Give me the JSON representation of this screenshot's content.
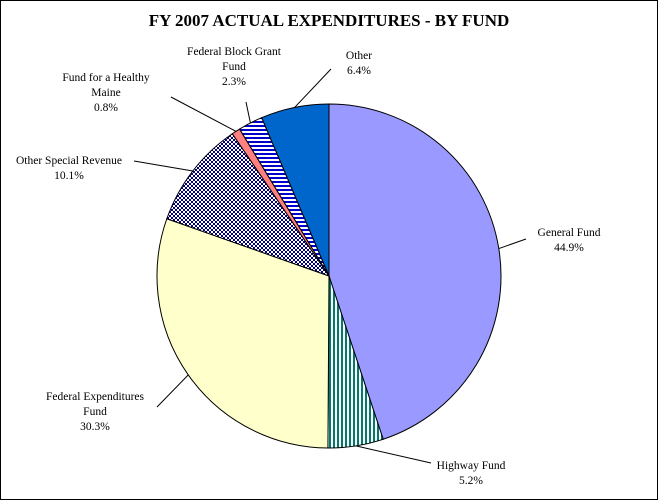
{
  "chart_data": {
    "type": "pie",
    "title": "FY 2007 ACTUAL EXPENDITURES - BY FUND",
    "slices": [
      {
        "name": "General Fund",
        "label_lines": [
          "General Fund"
        ],
        "value": 44.9,
        "value_label": "44.9%",
        "color": "#9999ff",
        "pattern": "solid"
      },
      {
        "name": "Highway Fund",
        "label_lines": [
          "Highway Fund"
        ],
        "value": 5.2,
        "value_label": "5.2%",
        "color": "#007a6e",
        "pattern": "vertical-lines"
      },
      {
        "name": "Federal Expenditures Fund",
        "label_lines": [
          "Federal Expenditures",
          "Fund"
        ],
        "value": 30.3,
        "value_label": "30.3%",
        "color": "#ffffcc",
        "pattern": "solid"
      },
      {
        "name": "Other Special Revenue",
        "label_lines": [
          "Other Special Revenue"
        ],
        "value": 10.1,
        "value_label": "10.1%",
        "color": "#000080",
        "pattern": "checker"
      },
      {
        "name": "Fund for a Healthy Maine",
        "label_lines": [
          "Fund for a Healthy",
          "Maine"
        ],
        "value": 0.8,
        "value_label": "0.8%",
        "color": "#ff8080",
        "pattern": "solid"
      },
      {
        "name": "Federal Block Grant Fund",
        "label_lines": [
          "Federal Block Grant",
          "Fund"
        ],
        "value": 2.3,
        "value_label": "2.3%",
        "color": "#0000cc",
        "pattern": "horizontal-lines"
      },
      {
        "name": "Other",
        "label_lines": [
          "Other"
        ],
        "value": 6.4,
        "value_label": "6.4%",
        "color": "#0066cc",
        "pattern": "solid"
      }
    ],
    "start_direction": "top",
    "direction": "clockwise",
    "legend": "none",
    "labels": "outside-with-leader-lines"
  }
}
